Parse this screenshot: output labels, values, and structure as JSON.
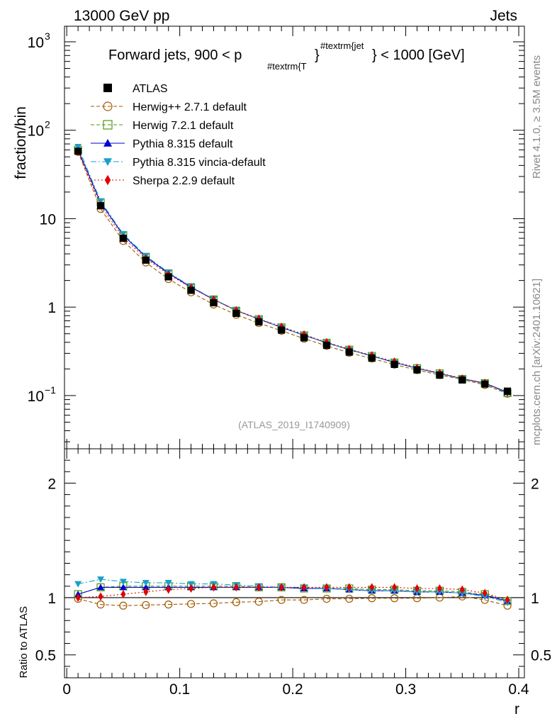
{
  "header": {
    "left": "13000 GeV pp",
    "right": "Jets"
  },
  "side_labels": {
    "rivet": "Rivet 4.1.0, ≥ 3.5M events",
    "mcplots": "mcplots.cern.ch [arXiv:2401.10621]"
  },
  "watermark": "(ATLAS_2019_I1740909)",
  "chart_data": [
    {
      "type": "line",
      "panel": "main",
      "title": "Forward jets, 900 < p_{#textrm{T}}^{#textrm{jet}} < 1000 [GeV]",
      "title_parts": {
        "pre": "Forward jets, 900 < p",
        "sub": "#textrm{T",
        "mid": "}",
        "sup": "#textrm{jet",
        "post": "} < 1000 [GeV]"
      },
      "xlabel": "r",
      "ylabel": "fraction/bin",
      "xlim": [
        -0.002,
        0.405
      ],
      "ylim": [
        0.025,
        1500
      ],
      "yscale": "log",
      "x_ticks": [
        "0",
        "0.1",
        "0.2",
        "0.3",
        "0.4"
      ],
      "y_tick_labels": [
        {
          "value": 1000,
          "base": "10",
          "exp": "3"
        },
        {
          "value": 100,
          "base": "10",
          "exp": "2"
        },
        {
          "value": 10,
          "base": "10",
          "exp": ""
        },
        {
          "value": 1,
          "base": "1",
          "exp": ""
        },
        {
          "value": 0.1,
          "base": "10",
          "exp": "−1"
        }
      ],
      "x": [
        0.01,
        0.03,
        0.05,
        0.07,
        0.09,
        0.11,
        0.13,
        0.15,
        0.17,
        0.19,
        0.21,
        0.23,
        0.25,
        0.27,
        0.29,
        0.31,
        0.33,
        0.35,
        0.37,
        0.39
      ],
      "series": [
        {
          "name": "ATLAS",
          "color": "#000000",
          "marker": "square",
          "line": "none",
          "values": [
            58,
            14,
            6.0,
            3.4,
            2.2,
            1.55,
            1.12,
            0.85,
            0.68,
            0.55,
            0.45,
            0.37,
            0.31,
            0.265,
            0.225,
            0.195,
            0.17,
            0.15,
            0.135,
            0.112
          ]
        },
        {
          "name": "Herwig++ 2.7.1 default",
          "color": "#a35a00",
          "marker": "circle-open",
          "line": "dashed",
          "values": [
            57,
            12.9,
            5.6,
            3.2,
            2.08,
            1.47,
            1.07,
            0.82,
            0.66,
            0.54,
            0.44,
            0.365,
            0.305,
            0.262,
            0.224,
            0.194,
            0.171,
            0.152,
            0.132,
            0.105
          ]
        },
        {
          "name": "Herwig 7.2.1 default",
          "color": "#4a9a10",
          "marker": "square-open",
          "line": "dashed",
          "values": [
            60,
            15.3,
            6.5,
            3.7,
            2.41,
            1.68,
            1.22,
            0.91,
            0.73,
            0.59,
            0.48,
            0.395,
            0.33,
            0.28,
            0.236,
            0.204,
            0.178,
            0.154,
            0.138,
            0.107
          ]
        },
        {
          "name": "Pythia 8.315 default",
          "color": "#0000d0",
          "marker": "triangle-up",
          "line": "solid",
          "values": [
            60,
            15.2,
            6.5,
            3.7,
            2.42,
            1.68,
            1.22,
            0.92,
            0.73,
            0.59,
            0.48,
            0.395,
            0.33,
            0.28,
            0.237,
            0.203,
            0.178,
            0.155,
            0.138,
            0.109
          ]
        },
        {
          "name": "Pythia 8.315 vincia-default",
          "color": "#1aa0c8",
          "marker": "triangle-down",
          "line": "dashdot",
          "values": [
            65,
            15.8,
            6.7,
            3.8,
            2.47,
            1.71,
            1.23,
            0.92,
            0.73,
            0.59,
            0.48,
            0.395,
            0.33,
            0.279,
            0.236,
            0.202,
            0.177,
            0.154,
            0.136,
            0.106
          ]
        },
        {
          "name": "Sherpa 2.2.9 default",
          "color": "#e00000",
          "marker": "diamond",
          "line": "dotted",
          "values": [
            58,
            14.2,
            6.1,
            3.55,
            2.35,
            1.66,
            1.22,
            0.92,
            0.74,
            0.6,
            0.49,
            0.4,
            0.335,
            0.285,
            0.242,
            0.206,
            0.18,
            0.156,
            0.139,
            0.109
          ]
        }
      ]
    },
    {
      "type": "line",
      "panel": "ratio",
      "xlabel": "r",
      "ylabel": "Ratio to ATLAS",
      "xlim": [
        -0.002,
        0.405
      ],
      "ylim": [
        0.3,
        2.3
      ],
      "y_tick_labels": [
        "0.5",
        "1",
        "2"
      ],
      "y_tick_values": [
        0.5,
        1,
        2
      ],
      "x": [
        0.01,
        0.03,
        0.05,
        0.07,
        0.09,
        0.11,
        0.13,
        0.15,
        0.17,
        0.19,
        0.21,
        0.23,
        0.25,
        0.27,
        0.29,
        0.31,
        0.33,
        0.35,
        0.37,
        0.39
      ],
      "series": [
        {
          "name": "ATLAS",
          "color": "#000000",
          "marker": "none",
          "line": "solid",
          "values": [
            1,
            1,
            1,
            1,
            1,
            1,
            1,
            1,
            1,
            1,
            1,
            1,
            1,
            1,
            1,
            1,
            1,
            1,
            1,
            1
          ]
        },
        {
          "name": "Herwig++ 2.7.1 default",
          "color": "#a35a00",
          "marker": "circle-open",
          "line": "dashed",
          "values": [
            0.99,
            0.94,
            0.93,
            0.935,
            0.94,
            0.945,
            0.95,
            0.96,
            0.965,
            0.98,
            0.98,
            0.99,
            0.99,
            0.995,
            0.995,
            0.995,
            1.0,
            1.01,
            0.98,
            0.93
          ]
        },
        {
          "name": "Herwig 7.2.1 default",
          "color": "#4a9a10",
          "marker": "square-open",
          "line": "dashed",
          "values": [
            1.03,
            1.09,
            1.1,
            1.1,
            1.1,
            1.1,
            1.1,
            1.1,
            1.09,
            1.09,
            1.08,
            1.08,
            1.08,
            1.07,
            1.07,
            1.06,
            1.06,
            1.05,
            1.03,
            0.97
          ]
        },
        {
          "name": "Pythia 8.315 default",
          "color": "#0000d0",
          "marker": "triangle-up",
          "line": "solid",
          "values": [
            1.03,
            1.09,
            1.09,
            1.09,
            1.09,
            1.09,
            1.09,
            1.09,
            1.09,
            1.09,
            1.08,
            1.08,
            1.07,
            1.06,
            1.06,
            1.05,
            1.05,
            1.04,
            1.02,
            0.97
          ]
        },
        {
          "name": "Pythia 8.315 vincia-default",
          "color": "#1aa0c8",
          "marker": "triangle-down",
          "line": "dashdot",
          "values": [
            1.12,
            1.16,
            1.14,
            1.13,
            1.13,
            1.12,
            1.12,
            1.11,
            1.1,
            1.09,
            1.09,
            1.08,
            1.07,
            1.06,
            1.06,
            1.05,
            1.05,
            1.04,
            1.01,
            0.96
          ]
        },
        {
          "name": "Sherpa 2.2.9 default",
          "color": "#e00000",
          "marker": "diamond",
          "line": "dotted",
          "values": [
            1.0,
            1.01,
            1.03,
            1.05,
            1.07,
            1.08,
            1.09,
            1.09,
            1.09,
            1.09,
            1.09,
            1.09,
            1.09,
            1.09,
            1.09,
            1.08,
            1.08,
            1.07,
            1.04,
            0.98
          ]
        }
      ]
    }
  ]
}
